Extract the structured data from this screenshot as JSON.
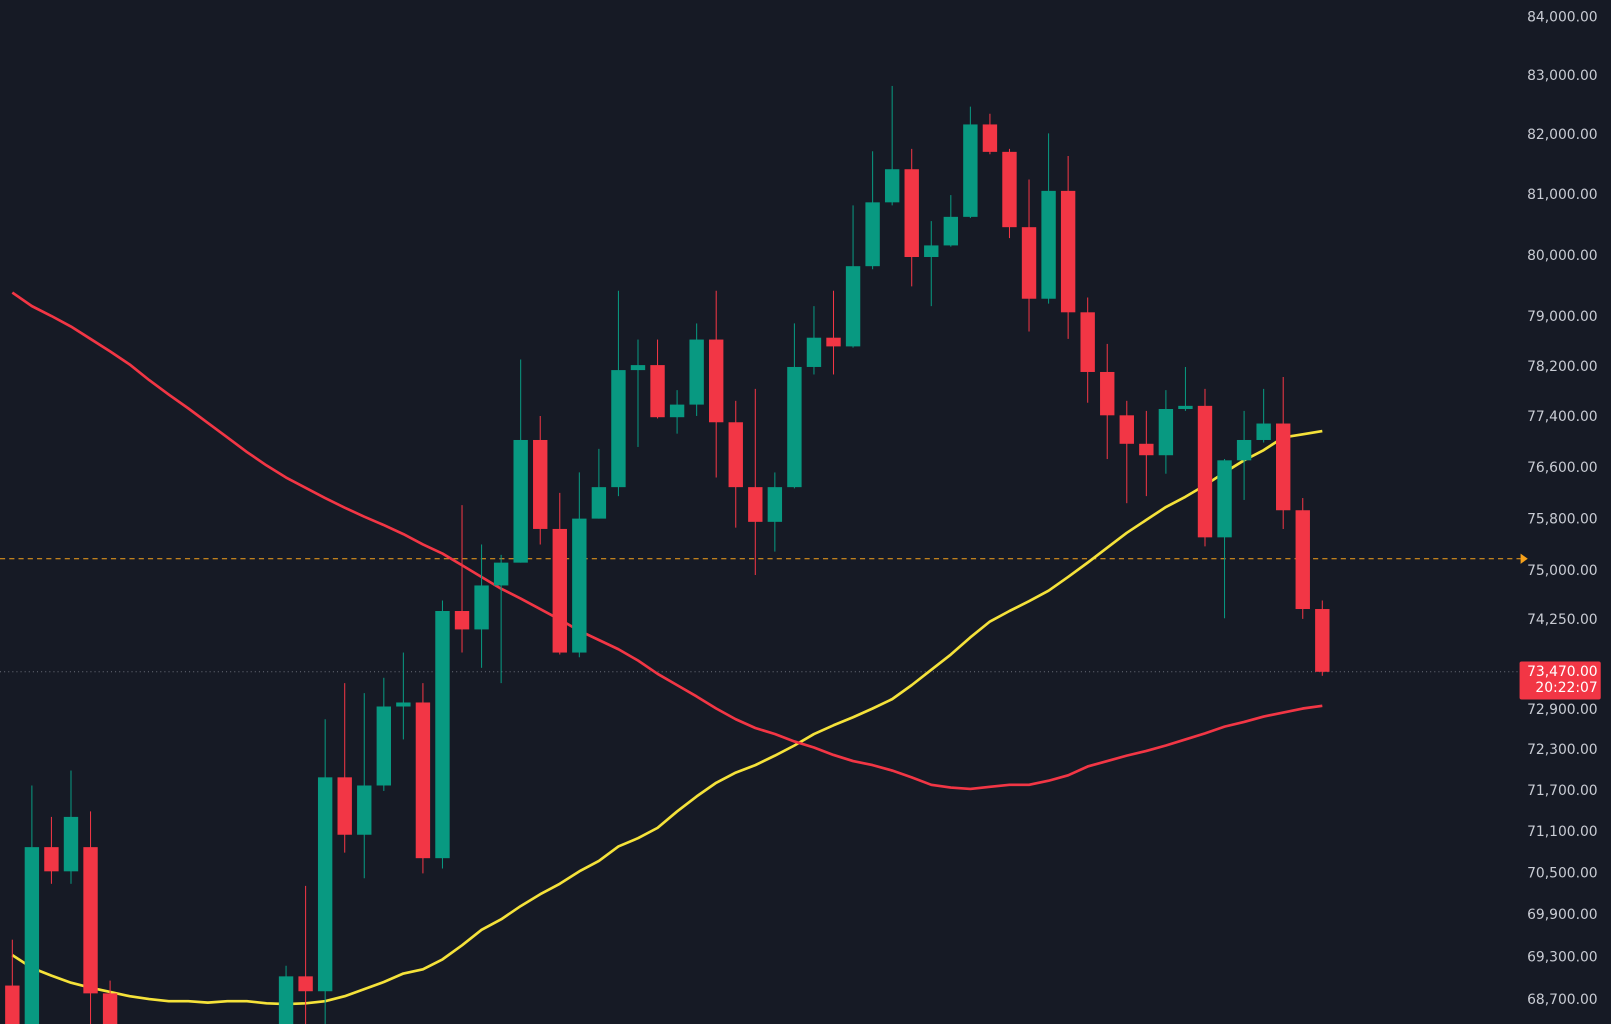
{
  "chart_data": {
    "type": "candlestick",
    "log_scale": true,
    "up_color": "#089981",
    "down_color": "#f23645",
    "ylim": [
      68360,
      84300
    ],
    "yticks": [
      {
        "value": 84000,
        "label": "84,000.00"
      },
      {
        "value": 83000,
        "label": "83,000.00"
      },
      {
        "value": 82000,
        "label": "82,000.00"
      },
      {
        "value": 81000,
        "label": "81,000.00"
      },
      {
        "value": 80000,
        "label": "80,000.00"
      },
      {
        "value": 79000,
        "label": "79,000.00"
      },
      {
        "value": 78200,
        "label": "78,200.00"
      },
      {
        "value": 77400,
        "label": "77,400.00"
      },
      {
        "value": 76600,
        "label": "76,600.00"
      },
      {
        "value": 75800,
        "label": "75,800.00"
      },
      {
        "value": 75000,
        "label": "75,000.00"
      },
      {
        "value": 74250,
        "label": "74,250.00"
      },
      {
        "value": 72900,
        "label": "72,900.00"
      },
      {
        "value": 72300,
        "label": "72,300.00"
      },
      {
        "value": 71700,
        "label": "71,700.00"
      },
      {
        "value": 71100,
        "label": "71,100.00"
      },
      {
        "value": 70500,
        "label": "70,500.00"
      },
      {
        "value": 69900,
        "label": "69,900.00"
      },
      {
        "value": 69300,
        "label": "69,300.00"
      },
      {
        "value": 68700,
        "label": "68,700.00"
      }
    ],
    "open": [
      68900,
      68360,
      70880,
      70530,
      70880,
      68790,
      null,
      null,
      null,
      null,
      null,
      null,
      null,
      null,
      68360,
      69030,
      68820,
      71900,
      71060,
      71780,
      72950,
      73010,
      70720,
      74390,
      74110,
      74780,
      75130,
      77040,
      75650,
      73760,
      75810,
      76300,
      78150,
      78230,
      77400,
      77600,
      78640,
      77320,
      76300,
      75760,
      76300,
      78200,
      78670,
      78530,
      79830,
      80880,
      81430,
      79980,
      80170,
      80640,
      82180,
      81720,
      80470,
      79300,
      81070,
      79080,
      78120,
      77430,
      76980,
      76800,
      77530,
      77580,
      75520,
      76720,
      77040,
      77300,
      75940,
      74420
    ],
    "high": [
      69550,
      71780,
      71320,
      72000,
      71400,
      68970,
      null,
      null,
      null,
      null,
      null,
      null,
      null,
      null,
      69180,
      70320,
      72760,
      73300,
      73150,
      73380,
      73760,
      73300,
      74550,
      76020,
      75410,
      75250,
      78320,
      77420,
      76210,
      76530,
      76900,
      79430,
      78640,
      78640,
      77830,
      78900,
      79430,
      77660,
      77850,
      76530,
      78900,
      79180,
      79430,
      80830,
      81730,
      82830,
      81770,
      80570,
      81000,
      82480,
      82360,
      81770,
      81260,
      82030,
      81650,
      79320,
      78570,
      77660,
      77500,
      77830,
      78200,
      77850,
      76740,
      77500,
      77850,
      78040,
      76130,
      74550
    ],
    "low": [
      68170,
      68170,
      70350,
      70350,
      68360,
      68250,
      null,
      null,
      null,
      null,
      null,
      null,
      null,
      null,
      68320,
      68360,
      68360,
      70800,
      70430,
      71700,
      72460,
      70500,
      70570,
      73760,
      73530,
      73300,
      75130,
      75410,
      73730,
      73690,
      75810,
      76160,
      76930,
      77380,
      77140,
      77420,
      76450,
      75670,
      74940,
      75300,
      76280,
      78080,
      78080,
      78510,
      79780,
      80830,
      79500,
      79180,
      80150,
      80620,
      81680,
      80290,
      78770,
      79220,
      78650,
      77630,
      76740,
      76050,
      76160,
      76510,
      77500,
      75380,
      74280,
      76100,
      77000,
      75650,
      74270,
      73410
    ],
    "close": [
      68320,
      70880,
      70530,
      71320,
      68790,
      68320,
      null,
      null,
      null,
      null,
      null,
      null,
      null,
      null,
      69030,
      68820,
      71900,
      71060,
      71780,
      72950,
      73010,
      70720,
      74390,
      74110,
      74780,
      75130,
      77040,
      75650,
      73760,
      75810,
      76300,
      78150,
      78230,
      77400,
      77600,
      78640,
      77320,
      76300,
      75760,
      76300,
      78200,
      78670,
      78530,
      79830,
      80880,
      81430,
      79980,
      80170,
      80640,
      82180,
      81720,
      80470,
      79300,
      81070,
      79080,
      78120,
      77430,
      76980,
      76800,
      77530,
      77580,
      75520,
      76720,
      77040,
      77300,
      75940,
      74420,
      73470
    ],
    "series": [
      {
        "color": "#f5e23a",
        "values": [
          69330,
          69150,
          69040,
          68940,
          68870,
          68810,
          68750,
          68710,
          68680,
          68680,
          68660,
          68680,
          68680,
          68650,
          68640,
          68650,
          68680,
          68750,
          68850,
          68950,
          69070,
          69130,
          69270,
          69470,
          69690,
          69840,
          70030,
          70200,
          70350,
          70530,
          70680,
          70890,
          71010,
          71160,
          71400,
          71620,
          71820,
          71970,
          72080,
          72220,
          72370,
          72540,
          72670,
          72790,
          72920,
          73060,
          73270,
          73500,
          73730,
          73990,
          74230,
          74390,
          74540,
          74700,
          74910,
          75130,
          75360,
          75590,
          75790,
          75990,
          76150,
          76330,
          76530,
          76720,
          76880,
          77080,
          77130,
          77180
        ]
      },
      {
        "color": "#f23645",
        "values": [
          79400,
          79180,
          79020,
          78850,
          78650,
          78450,
          78240,
          77990,
          77760,
          77540,
          77310,
          77080,
          76850,
          76640,
          76450,
          76290,
          76130,
          75980,
          75840,
          75710,
          75570,
          75410,
          75270,
          75090,
          74910,
          74730,
          74580,
          74420,
          74260,
          74090,
          73950,
          73810,
          73640,
          73440,
          73270,
          73100,
          72920,
          72760,
          72630,
          72540,
          72430,
          72340,
          72230,
          72140,
          72080,
          72000,
          71900,
          71790,
          71750,
          71730,
          71760,
          71790,
          71790,
          71850,
          71930,
          72060,
          72140,
          72220,
          72290,
          72370,
          72460,
          72550,
          72650,
          72720,
          72800,
          72860,
          72920,
          72960
        ]
      }
    ],
    "alert_line": {
      "value": 75190,
      "color": "#f7a21b"
    },
    "last_price": {
      "value": 73470,
      "label": "73,470.00"
    },
    "countdown": "20:22:07"
  }
}
